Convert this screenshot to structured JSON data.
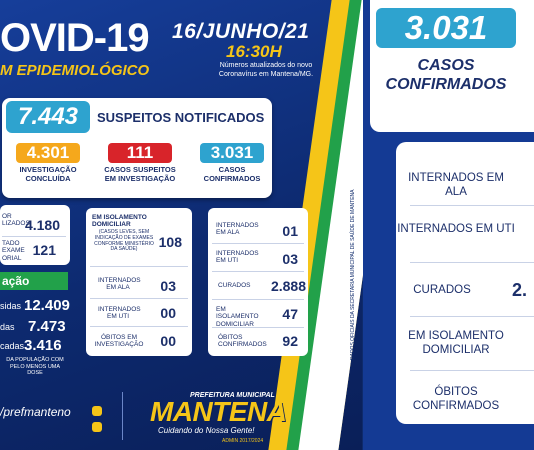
{
  "header": {
    "title": "OVID-19",
    "subtitle": "M EPIDEMIOLÓGICO",
    "date": "16/JUNHO/21",
    "time": "16:30H",
    "note": "Números atualizados do novo Coronavírus em Mantena/MG."
  },
  "suspeitos": {
    "total": "7.443",
    "label": "SUSPEITOS NOTIFICADOS",
    "boxes": [
      {
        "value": "4.301",
        "label": "INVESTIGAÇÃO CONCLUÍDA",
        "color": "#f5a81c"
      },
      {
        "value": "111",
        "label": "CASOS SUSPEITOS EM INVESTIGAÇÃO",
        "color": "#d8242a"
      },
      {
        "value": "3.031",
        "label": "CASOS CONFIRMADOS",
        "color": "#2ea3cf"
      }
    ]
  },
  "left_partial": {
    "rows": [
      {
        "label": "OR LIZADOS",
        "value": "4.180"
      },
      {
        "label": "TADO EXAME ORIAL",
        "value": "121"
      }
    ]
  },
  "investigacao": {
    "rows": [
      {
        "label": "EM ISOLAMENTO DOMICILIAR",
        "sublabel": "(CASOS LEVES, SEM INDICAÇÃO DE EXAMES CONFORME MINISTÉRIO DA SAÚDE)",
        "value": "108"
      },
      {
        "label": "INTERNADOS EM ALA",
        "sublabel": "",
        "value": "03"
      },
      {
        "label": "INTERNADOS EM UTI",
        "sublabel": "",
        "value": "00"
      },
      {
        "label": "ÓBITOS EM INVESTIGAÇÃO",
        "sublabel": "",
        "value": "00"
      }
    ]
  },
  "confirmados_mini": {
    "rows": [
      {
        "label": "INTERNADOS EM ALA",
        "value": "01"
      },
      {
        "label": "INTERNADOS EM UTI",
        "value": "03"
      },
      {
        "label": "CURADOS",
        "value": "2.888"
      },
      {
        "label": "EM ISOLAMENTO DOMICILIAR",
        "value": "47"
      },
      {
        "label": "ÓBITOS CONFIRMADOS",
        "value": "92"
      }
    ]
  },
  "vacinacao": {
    "tab": "ação",
    "rows": [
      {
        "label": "sidas",
        "value": "12.409"
      },
      {
        "label": "das",
        "value": "7.473"
      },
      {
        "label": "cadas",
        "value": "3.416"
      }
    ],
    "footnote": "DA POPULAÇÃO COM PELO MENOS UMA DOSE"
  },
  "footer": {
    "social": "/prefmanteno",
    "logo_top": "PREFEITURA MUNICIPAL",
    "logo_main": "MANTENA",
    "slogan": "Cuidando do Nossa Gente!",
    "admin": "ADMIN 2017/2024"
  },
  "vertical_text": "DADOS OFICIAIS DA SECRETARIA MUNICIPAL DE SAÚDE DE MANTENA",
  "right_panel": {
    "total": "3.031",
    "title": "CASOS CONFIRMADOS",
    "rows": [
      {
        "label": "INTERNADOS EM ALA",
        "value": ""
      },
      {
        "label": "INTERNADOS EM UTI",
        "value": ""
      },
      {
        "label": "CURADOS",
        "value": "2."
      },
      {
        "label": "EM ISOLAMENTO DOMICILIAR",
        "value": ""
      },
      {
        "label": "ÓBITOS CONFIRMADOS",
        "value": ""
      }
    ]
  }
}
